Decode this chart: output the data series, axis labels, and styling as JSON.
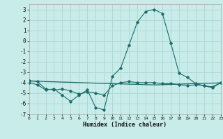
{
  "xlabel": "Humidex (Indice chaleur)",
  "background_color": "#c8ece9",
  "grid_color": "#b0d8d4",
  "line_color": "#1a6b6b",
  "x_values": [
    0,
    1,
    2,
    3,
    4,
    5,
    6,
    7,
    8,
    9,
    10,
    11,
    12,
    13,
    14,
    15,
    16,
    17,
    18,
    19,
    20,
    21,
    22,
    23
  ],
  "line1_y": [
    -4.0,
    -4.2,
    -4.7,
    -4.6,
    -5.2,
    -5.8,
    -5.2,
    -4.7,
    -6.4,
    -6.6,
    -3.4,
    -2.6,
    -0.4,
    1.8,
    2.8,
    3.0,
    2.6,
    -0.2,
    -3.1,
    -3.5,
    -4.1,
    -4.3,
    -4.5,
    -4.0
  ],
  "line2_y": [
    -3.85,
    -3.87,
    -3.9,
    -3.92,
    -3.95,
    -3.97,
    -4.0,
    -4.02,
    -4.05,
    -4.07,
    -4.1,
    -4.12,
    -4.15,
    -4.17,
    -4.2,
    -4.22,
    -4.2,
    -4.17,
    -4.15,
    -4.12,
    -4.1,
    -4.07,
    -4.05,
    -4.02
  ],
  "line3_y": [
    -3.8,
    -3.9,
    -4.6,
    -4.7,
    -4.6,
    -4.8,
    -5.1,
    -4.9,
    -5.0,
    -5.2,
    -4.3,
    -4.0,
    -3.9,
    -4.0,
    -4.0,
    -4.0,
    -4.1,
    -4.1,
    -4.2,
    -4.3,
    -4.2,
    -4.3,
    -4.4,
    -4.0
  ],
  "ylim": [
    -7,
    3.5
  ],
  "xlim": [
    0,
    23
  ],
  "yticks": [
    -7,
    -6,
    -5,
    -4,
    -3,
    -2,
    -1,
    0,
    1,
    2,
    3
  ],
  "xticks": [
    0,
    1,
    2,
    3,
    4,
    5,
    6,
    7,
    8,
    9,
    10,
    11,
    12,
    13,
    14,
    15,
    16,
    17,
    18,
    19,
    20,
    21,
    22,
    23
  ]
}
